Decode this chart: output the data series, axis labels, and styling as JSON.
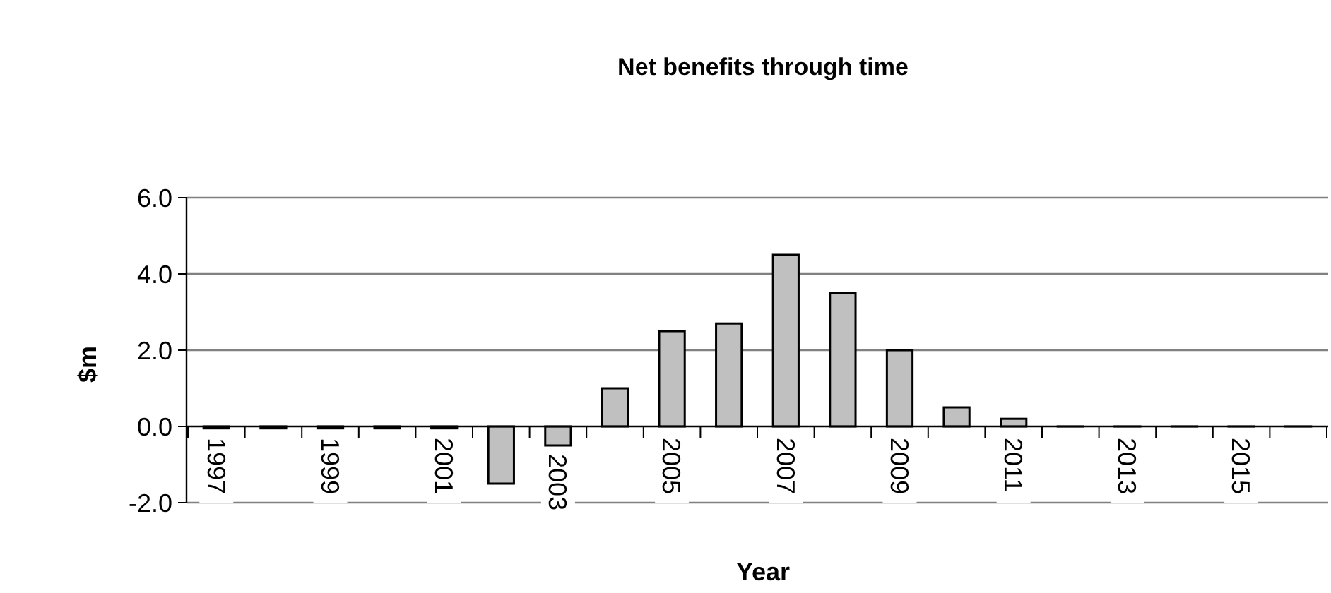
{
  "chart_data": {
    "type": "bar",
    "title": "Net benefits through time",
    "xlabel": "Year",
    "ylabel": "$m",
    "categories": [
      "1997",
      null,
      "1999",
      null,
      "2001",
      null,
      "2003",
      null,
      "2005",
      null,
      "2007",
      null,
      "2009",
      null,
      "2011",
      null,
      "2013",
      null,
      "2015",
      null
    ],
    "values": [
      -0.05,
      -0.05,
      -0.05,
      -0.05,
      -0.05,
      -1.5,
      -0.5,
      1.0,
      2.5,
      2.7,
      4.5,
      3.5,
      2.0,
      0.5,
      0.2,
      0,
      0,
      0,
      0,
      0
    ],
    "color": "#c0c0c0",
    "ylim": [
      -2,
      6
    ],
    "yticks": [
      {
        "value": -2,
        "label": "-2.0"
      },
      {
        "value": 0,
        "label": "0.0"
      },
      {
        "value": 2,
        "label": "2.0"
      },
      {
        "value": 4,
        "label": "4.0"
      },
      {
        "value": 6,
        "label": "6.0"
      }
    ],
    "grid": "y"
  }
}
